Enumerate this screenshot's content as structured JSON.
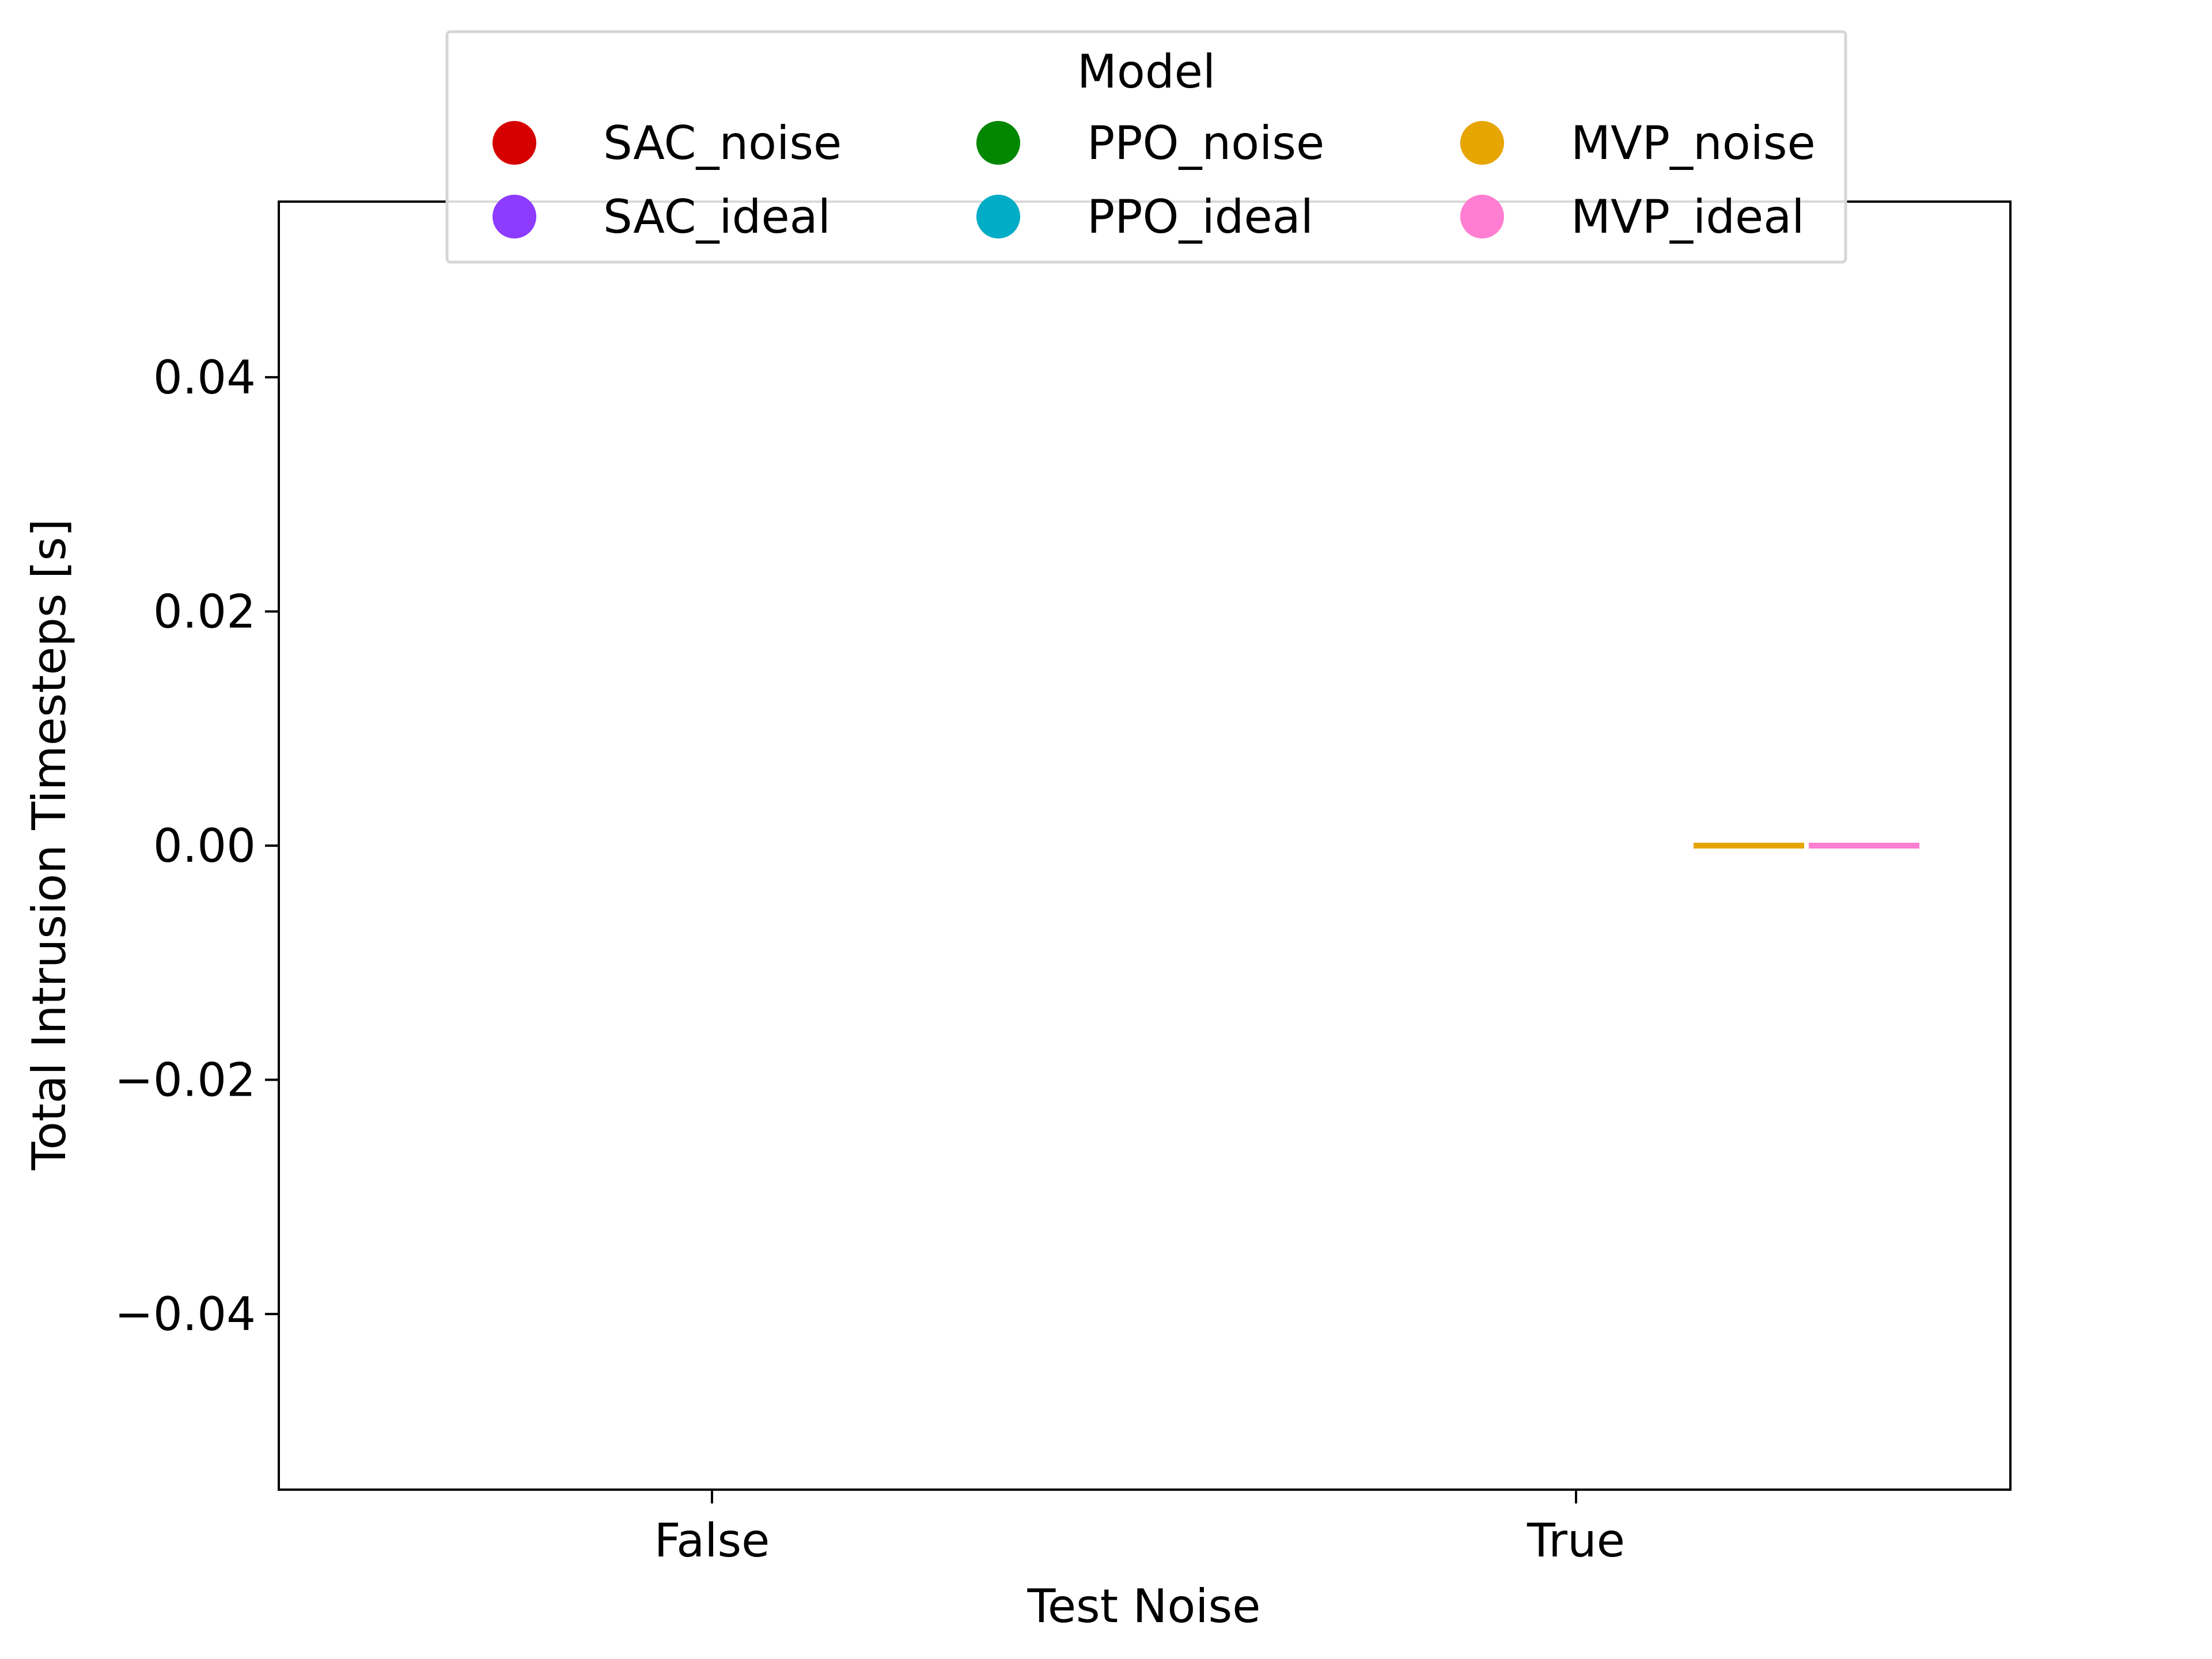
{
  "chart_data": {
    "type": "box",
    "title": "",
    "xlabel": "Test Noise",
    "ylabel": "Total Intrusion Timesteps [s]",
    "categories": [
      "False",
      "True"
    ],
    "ylim": [
      -0.055,
      0.055
    ],
    "yticks": [
      -0.04,
      -0.02,
      0.0,
      0.02,
      0.04
    ],
    "ytick_labels": [
      "−0.04",
      "−0.02",
      "0.00",
      "0.02",
      "0.04"
    ],
    "grid": false,
    "legend": {
      "title": "Model",
      "placement": "upper-center",
      "columns": 3
    },
    "series": [
      {
        "name": "SAC_noise",
        "color": "#d60000",
        "values": [
          null,
          null
        ]
      },
      {
        "name": "SAC_ideal",
        "color": "#8c3bff",
        "values": [
          null,
          null
        ]
      },
      {
        "name": "PPO_noise",
        "color": "#018700",
        "values": [
          null,
          null
        ]
      },
      {
        "name": "PPO_ideal",
        "color": "#00acc6",
        "values": [
          null,
          null
        ]
      },
      {
        "name": "MVP_noise",
        "color": "#e6a500",
        "values": [
          null,
          0.0
        ]
      },
      {
        "name": "MVP_ideal",
        "color": "#ff7ed1",
        "values": [
          null,
          0.0
        ]
      }
    ]
  }
}
